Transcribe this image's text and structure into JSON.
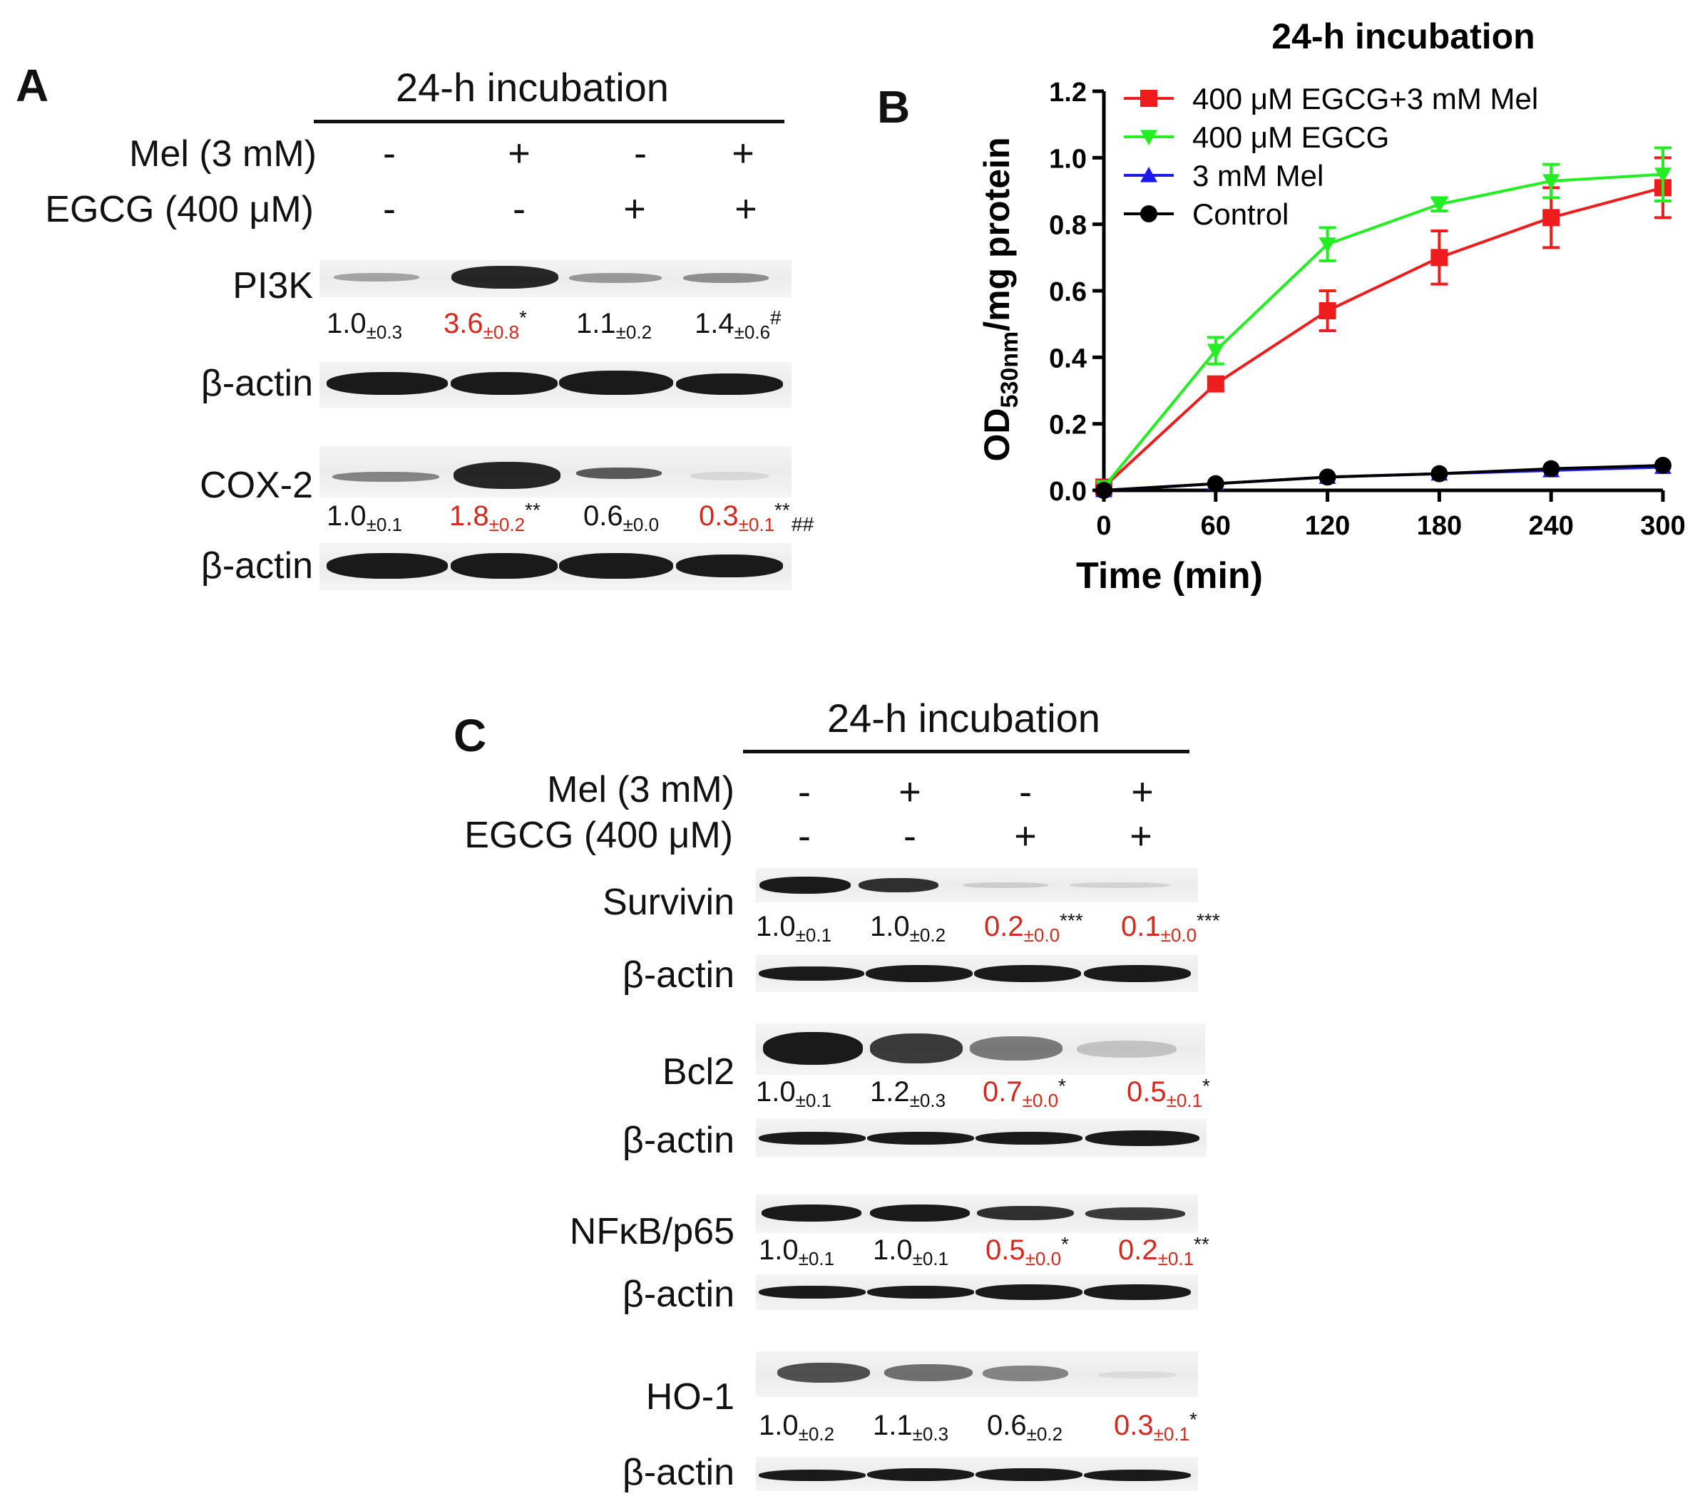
{
  "panel_a": {
    "label": "A",
    "title": "24-h incubation",
    "row_mel": "Mel (3 mM)",
    "row_egcg": "EGCG (400 μM)",
    "mel_signs": [
      "-",
      "+",
      "-",
      "+"
    ],
    "egcg_signs": [
      "-",
      "-",
      "+",
      "+"
    ],
    "blots": [
      {
        "protein": "PI3K",
        "values": [
          {
            "v": "1.0",
            "sd": "±0.3",
            "mark": "",
            "highlight": false
          },
          {
            "v": "3.6",
            "sd": "±0.8",
            "mark": "*",
            "highlight": true
          },
          {
            "v": "1.1",
            "sd": "±0.2",
            "mark": "",
            "highlight": false
          },
          {
            "v": "1.4",
            "sd": "±0.6",
            "mark": "#",
            "highlight": false
          }
        ]
      },
      {
        "protein": "β-actin"
      },
      {
        "protein": "COX-2",
        "values": [
          {
            "v": "1.0",
            "sd": "±0.1",
            "mark": "",
            "highlight": false
          },
          {
            "v": "1.8",
            "sd": "±0.2",
            "mark": "**",
            "highlight": true
          },
          {
            "v": "0.6",
            "sd": "±0.0",
            "mark": "",
            "highlight": false
          },
          {
            "v": "0.3",
            "sd": "±0.1",
            "mark": "**",
            "mark2": "##",
            "highlight": true
          }
        ]
      },
      {
        "protein": "β-actin"
      }
    ]
  },
  "panel_b": {
    "label": "B",
    "colors": {
      "egcg_mel": "#ee1c1c",
      "egcg": "#22ee22",
      "mel": "#1a1aee",
      "control": "#000000"
    }
  },
  "chart_data": {
    "type": "line",
    "title": "24-h incubation",
    "xlabel": "Time (min)",
    "ylabel_main": "OD",
    "ylabel_sub": "530nm",
    "ylabel_rest": "/mg protein",
    "x": [
      0,
      60,
      120,
      180,
      240,
      300
    ],
    "xticks": [
      "0",
      "60",
      "120",
      "180",
      "240",
      "300"
    ],
    "yticks": [
      "0.0",
      "0.2",
      "0.4",
      "0.6",
      "0.8",
      "1.0",
      "1.2"
    ],
    "xlim": [
      0,
      300
    ],
    "ylim": [
      0,
      1.2
    ],
    "series": [
      {
        "name": "400 μM EGCG+3 mM Mel",
        "marker": "square",
        "values": [
          0.01,
          0.32,
          0.54,
          0.7,
          0.82,
          0.91
        ],
        "err": [
          0.0,
          0.02,
          0.06,
          0.08,
          0.09,
          0.09
        ]
      },
      {
        "name": "400 μM EGCG",
        "marker": "triangle-down",
        "values": [
          0.01,
          0.42,
          0.74,
          0.86,
          0.93,
          0.95
        ],
        "err": [
          0.0,
          0.04,
          0.05,
          0.02,
          0.05,
          0.08
        ]
      },
      {
        "name": "3 mM Mel",
        "marker": "triangle-up",
        "values": [
          0.0,
          0.02,
          0.04,
          0.05,
          0.06,
          0.07
        ],
        "err": [
          0.0,
          0.0,
          0.0,
          0.0,
          0.0,
          0.0
        ]
      },
      {
        "name": "Control",
        "marker": "circle",
        "values": [
          0.0,
          0.02,
          0.04,
          0.05,
          0.065,
          0.075
        ],
        "err": [
          0.0,
          0.0,
          0.0,
          0.0,
          0.0,
          0.0
        ]
      }
    ]
  },
  "panel_c": {
    "label": "C",
    "title": "24-h incubation",
    "row_mel": "Mel (3 mM)",
    "row_egcg": "EGCG (400 μM)",
    "mel_signs": [
      "-",
      "+",
      "-",
      "+"
    ],
    "egcg_signs": [
      "-",
      "-",
      "+",
      "+"
    ],
    "blots": [
      {
        "protein": "Survivin",
        "values": [
          {
            "v": "1.0",
            "sd": "±0.1",
            "mark": "",
            "highlight": false
          },
          {
            "v": "1.0",
            "sd": "±0.2",
            "mark": "",
            "highlight": false
          },
          {
            "v": "0.2",
            "sd": "±0.0",
            "mark": "***",
            "highlight": true
          },
          {
            "v": "0.1",
            "sd": "±0.0",
            "mark": "***",
            "highlight": true
          }
        ]
      },
      {
        "protein": "β-actin"
      },
      {
        "protein": "Bcl2",
        "values": [
          {
            "v": "1.0",
            "sd": "±0.1",
            "mark": "",
            "highlight": false
          },
          {
            "v": "1.2",
            "sd": "±0.3",
            "mark": "",
            "highlight": false
          },
          {
            "v": "0.7",
            "sd": "±0.0",
            "mark": "*",
            "highlight": true
          },
          {
            "v": "0.5",
            "sd": "±0.1",
            "mark": "*",
            "highlight": true
          }
        ]
      },
      {
        "protein": "β-actin"
      },
      {
        "protein": "NFκB/p65",
        "values": [
          {
            "v": "1.0",
            "sd": "±0.1",
            "mark": "",
            "highlight": false
          },
          {
            "v": "1.0",
            "sd": "±0.1",
            "mark": "",
            "highlight": false
          },
          {
            "v": "0.5",
            "sd": "±0.0",
            "mark": "*",
            "highlight": true
          },
          {
            "v": "0.2",
            "sd": "±0.1",
            "mark": "**",
            "highlight": true
          }
        ]
      },
      {
        "protein": "β-actin"
      },
      {
        "protein": "HO-1",
        "values": [
          {
            "v": "1.0",
            "sd": "±0.2",
            "mark": "",
            "highlight": false
          },
          {
            "v": "1.1",
            "sd": "±0.3",
            "mark": "",
            "highlight": false
          },
          {
            "v": "0.6",
            "sd": "±0.2",
            "mark": "",
            "highlight": false
          },
          {
            "v": "0.3",
            "sd": "±0.1",
            "mark": "*",
            "highlight": true
          }
        ]
      },
      {
        "protein": "β-actin"
      }
    ]
  }
}
